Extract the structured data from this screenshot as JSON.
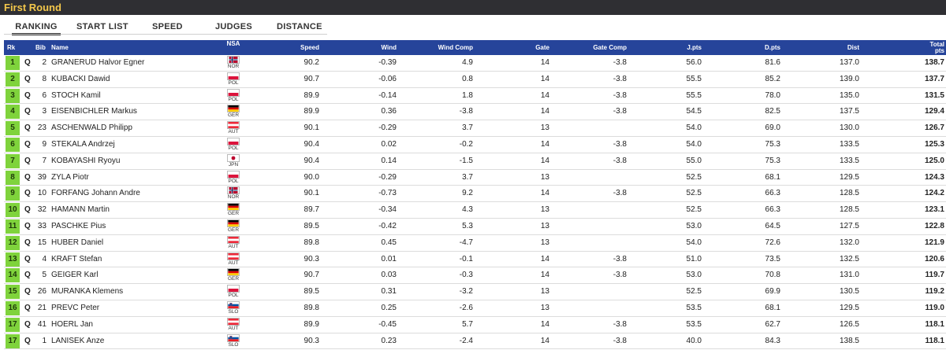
{
  "header": {
    "title": "First Round"
  },
  "tabs": [
    {
      "label": "RANKING",
      "active": true
    },
    {
      "label": "START LIST",
      "active": false
    },
    {
      "label": "SPEED",
      "active": false
    },
    {
      "label": "JUDGES",
      "active": false
    },
    {
      "label": "DISTANCE",
      "active": false
    }
  ],
  "columns": {
    "rk": "Rk",
    "bib": "Bib",
    "name": "Name",
    "nsa": "NSA",
    "speed": "Speed",
    "wind": "Wind",
    "wind_comp": "Wind Comp",
    "gate": "Gate",
    "gate_comp": "Gate Comp",
    "jpts": "J.pts",
    "dpts": "D.pts",
    "dist": "Dist",
    "total": "Total pts"
  },
  "rows": [
    {
      "rk": "1",
      "q": "Q",
      "bib": "2",
      "name": "GRANERUD Halvor Egner",
      "nsa": "NOR",
      "speed": "90.2",
      "wind": "-0.39",
      "wind_comp": "4.9",
      "gate": "14",
      "gate_comp": "-3.8",
      "jpts": "56.0",
      "dpts": "81.6",
      "dist": "137.0",
      "total": "138.7"
    },
    {
      "rk": "2",
      "q": "Q",
      "bib": "8",
      "name": "KUBACKI Dawid",
      "nsa": "POL",
      "speed": "90.7",
      "wind": "-0.06",
      "wind_comp": "0.8",
      "gate": "14",
      "gate_comp": "-3.8",
      "jpts": "55.5",
      "dpts": "85.2",
      "dist": "139.0",
      "total": "137.7"
    },
    {
      "rk": "3",
      "q": "Q",
      "bib": "6",
      "name": "STOCH Kamil",
      "nsa": "POL",
      "speed": "89.9",
      "wind": "-0.14",
      "wind_comp": "1.8",
      "gate": "14",
      "gate_comp": "-3.8",
      "jpts": "55.5",
      "dpts": "78.0",
      "dist": "135.0",
      "total": "131.5"
    },
    {
      "rk": "4",
      "q": "Q",
      "bib": "3",
      "name": "EISENBICHLER Markus",
      "nsa": "GER",
      "speed": "89.9",
      "wind": "0.36",
      "wind_comp": "-3.8",
      "gate": "14",
      "gate_comp": "-3.8",
      "jpts": "54.5",
      "dpts": "82.5",
      "dist": "137.5",
      "total": "129.4"
    },
    {
      "rk": "5",
      "q": "Q",
      "bib": "23",
      "name": "ASCHENWALD Philipp",
      "nsa": "AUT",
      "speed": "90.1",
      "wind": "-0.29",
      "wind_comp": "3.7",
      "gate": "13",
      "gate_comp": "",
      "jpts": "54.0",
      "dpts": "69.0",
      "dist": "130.0",
      "total": "126.7"
    },
    {
      "rk": "6",
      "q": "Q",
      "bib": "9",
      "name": "STEKALA Andrzej",
      "nsa": "POL",
      "speed": "90.4",
      "wind": "0.02",
      "wind_comp": "-0.2",
      "gate": "14",
      "gate_comp": "-3.8",
      "jpts": "54.0",
      "dpts": "75.3",
      "dist": "133.5",
      "total": "125.3"
    },
    {
      "rk": "7",
      "q": "Q",
      "bib": "7",
      "name": "KOBAYASHI Ryoyu",
      "nsa": "JPN",
      "speed": "90.4",
      "wind": "0.14",
      "wind_comp": "-1.5",
      "gate": "14",
      "gate_comp": "-3.8",
      "jpts": "55.0",
      "dpts": "75.3",
      "dist": "133.5",
      "total": "125.0"
    },
    {
      "rk": "8",
      "q": "Q",
      "bib": "39",
      "name": "ZYLA Piotr",
      "nsa": "POL",
      "speed": "90.0",
      "wind": "-0.29",
      "wind_comp": "3.7",
      "gate": "13",
      "gate_comp": "",
      "jpts": "52.5",
      "dpts": "68.1",
      "dist": "129.5",
      "total": "124.3"
    },
    {
      "rk": "9",
      "q": "Q",
      "bib": "10",
      "name": "FORFANG Johann Andre",
      "nsa": "NOR",
      "speed": "90.1",
      "wind": "-0.73",
      "wind_comp": "9.2",
      "gate": "14",
      "gate_comp": "-3.8",
      "jpts": "52.5",
      "dpts": "66.3",
      "dist": "128.5",
      "total": "124.2"
    },
    {
      "rk": "10",
      "q": "Q",
      "bib": "32",
      "name": "HAMANN Martin",
      "nsa": "GER",
      "speed": "89.7",
      "wind": "-0.34",
      "wind_comp": "4.3",
      "gate": "13",
      "gate_comp": "",
      "jpts": "52.5",
      "dpts": "66.3",
      "dist": "128.5",
      "total": "123.1"
    },
    {
      "rk": "11",
      "q": "Q",
      "bib": "33",
      "name": "PASCHKE Pius",
      "nsa": "GER",
      "speed": "89.5",
      "wind": "-0.42",
      "wind_comp": "5.3",
      "gate": "13",
      "gate_comp": "",
      "jpts": "53.0",
      "dpts": "64.5",
      "dist": "127.5",
      "total": "122.8"
    },
    {
      "rk": "12",
      "q": "Q",
      "bib": "15",
      "name": "HUBER Daniel",
      "nsa": "AUT",
      "speed": "89.8",
      "wind": "0.45",
      "wind_comp": "-4.7",
      "gate": "13",
      "gate_comp": "",
      "jpts": "54.0",
      "dpts": "72.6",
      "dist": "132.0",
      "total": "121.9"
    },
    {
      "rk": "13",
      "q": "Q",
      "bib": "4",
      "name": "KRAFT Stefan",
      "nsa": "AUT",
      "speed": "90.3",
      "wind": "0.01",
      "wind_comp": "-0.1",
      "gate": "14",
      "gate_comp": "-3.8",
      "jpts": "51.0",
      "dpts": "73.5",
      "dist": "132.5",
      "total": "120.6"
    },
    {
      "rk": "14",
      "q": "Q",
      "bib": "5",
      "name": "GEIGER Karl",
      "nsa": "GER",
      "speed": "90.7",
      "wind": "0.03",
      "wind_comp": "-0.3",
      "gate": "14",
      "gate_comp": "-3.8",
      "jpts": "53.0",
      "dpts": "70.8",
      "dist": "131.0",
      "total": "119.7"
    },
    {
      "rk": "15",
      "q": "Q",
      "bib": "26",
      "name": "MURANKA Klemens",
      "nsa": "POL",
      "speed": "89.5",
      "wind": "0.31",
      "wind_comp": "-3.2",
      "gate": "13",
      "gate_comp": "",
      "jpts": "52.5",
      "dpts": "69.9",
      "dist": "130.5",
      "total": "119.2"
    },
    {
      "rk": "16",
      "q": "Q",
      "bib": "21",
      "name": "PREVC Peter",
      "nsa": "SLO",
      "speed": "89.8",
      "wind": "0.25",
      "wind_comp": "-2.6",
      "gate": "13",
      "gate_comp": "",
      "jpts": "53.5",
      "dpts": "68.1",
      "dist": "129.5",
      "total": "119.0"
    },
    {
      "rk": "17",
      "q": "Q",
      "bib": "41",
      "name": "HOERL Jan",
      "nsa": "AUT",
      "speed": "89.9",
      "wind": "-0.45",
      "wind_comp": "5.7",
      "gate": "14",
      "gate_comp": "-3.8",
      "jpts": "53.5",
      "dpts": "62.7",
      "dist": "126.5",
      "total": "118.1"
    },
    {
      "rk": "17",
      "q": "Q",
      "bib": "1",
      "name": "LANISEK Anze",
      "nsa": "SLO",
      "speed": "90.3",
      "wind": "0.23",
      "wind_comp": "-2.4",
      "gate": "14",
      "gate_comp": "-3.8",
      "jpts": "40.0",
      "dpts": "84.3",
      "dist": "138.5",
      "total": "118.1"
    }
  ]
}
